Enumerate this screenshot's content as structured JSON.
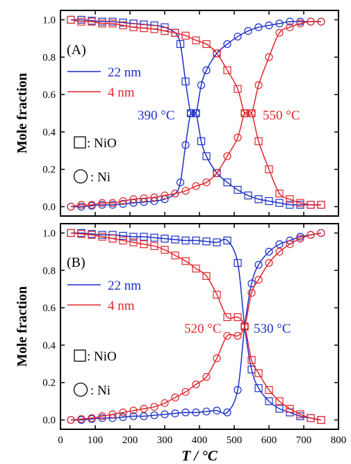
{
  "figure": {
    "x_axis_label": "T / °C",
    "x_ticks": [
      0,
      100,
      200,
      300,
      400,
      500,
      600,
      700,
      800
    ],
    "y_ticks": [
      0.0,
      0.2,
      0.4,
      0.6,
      0.8,
      1.0
    ],
    "colors": {
      "blue": "#1a2fc8",
      "red": "#e0262a",
      "axis": "#000000"
    }
  },
  "chart_data": [
    {
      "type": "line",
      "panel_label": "(A)",
      "xlabel": "",
      "ylabel": "Mole fraction",
      "xlim": [
        0,
        800
      ],
      "ylim": [
        -0.05,
        1.05
      ],
      "legend": [
        "22 nm",
        "4 nm"
      ],
      "marker_key": [
        {
          "symbol": "square",
          "label": ": NiO"
        },
        {
          "symbol": "circle",
          "label": ": Ni"
        }
      ],
      "annotations": [
        "390 °C",
        "550 °C"
      ],
      "series": [
        {
          "name": "22 nm",
          "color": "blue",
          "marker": "square",
          "x": [
            30,
            60,
            90,
            120,
            150,
            180,
            210,
            240,
            270,
            300,
            330,
            345,
            360,
            375,
            390,
            405,
            420,
            450,
            480,
            510,
            540,
            570,
            600,
            630,
            660,
            690,
            720,
            750
          ],
          "y": [
            1.0,
            1.0,
            0.995,
            0.99,
            0.99,
            0.985,
            0.98,
            0.975,
            0.97,
            0.96,
            0.93,
            0.87,
            0.67,
            0.5,
            0.5,
            0.35,
            0.27,
            0.18,
            0.13,
            0.09,
            0.06,
            0.04,
            0.03,
            0.02,
            0.01,
            0.01,
            0.01,
            0.01
          ]
        },
        {
          "name": "22 nm",
          "color": "blue",
          "marker": "circle",
          "x": [
            30,
            60,
            90,
            120,
            150,
            180,
            210,
            240,
            270,
            300,
            330,
            345,
            360,
            375,
            390,
            405,
            420,
            450,
            480,
            510,
            540,
            570,
            600,
            630,
            660,
            690,
            720,
            750
          ],
          "y": [
            0.0,
            0.0,
            0.005,
            0.01,
            0.01,
            0.015,
            0.02,
            0.025,
            0.03,
            0.04,
            0.07,
            0.13,
            0.33,
            0.5,
            0.5,
            0.65,
            0.73,
            0.82,
            0.87,
            0.91,
            0.94,
            0.96,
            0.97,
            0.98,
            0.99,
            0.99,
            0.99,
            0.99
          ]
        },
        {
          "name": "4 nm",
          "color": "red",
          "marker": "square",
          "x": [
            30,
            60,
            90,
            120,
            150,
            180,
            210,
            240,
            270,
            300,
            330,
            360,
            390,
            420,
            450,
            480,
            510,
            530,
            550,
            570,
            600,
            630,
            660,
            690,
            720,
            750
          ],
          "y": [
            1.0,
            0.99,
            0.99,
            0.98,
            0.98,
            0.97,
            0.96,
            0.955,
            0.95,
            0.94,
            0.93,
            0.915,
            0.89,
            0.87,
            0.82,
            0.73,
            0.63,
            0.5,
            0.5,
            0.35,
            0.2,
            0.07,
            0.04,
            0.02,
            0.01,
            0.01
          ]
        },
        {
          "name": "4 nm",
          "color": "red",
          "marker": "circle",
          "x": [
            30,
            60,
            90,
            120,
            150,
            180,
            210,
            240,
            270,
            300,
            330,
            360,
            390,
            420,
            450,
            480,
            510,
            530,
            550,
            570,
            600,
            630,
            660,
            690,
            720,
            750
          ],
          "y": [
            0.0,
            0.01,
            0.01,
            0.02,
            0.02,
            0.03,
            0.04,
            0.045,
            0.05,
            0.06,
            0.07,
            0.085,
            0.11,
            0.13,
            0.18,
            0.27,
            0.37,
            0.5,
            0.5,
            0.65,
            0.8,
            0.93,
            0.96,
            0.98,
            0.99,
            0.99
          ]
        }
      ]
    },
    {
      "type": "line",
      "panel_label": "(B)",
      "xlabel": "T / °C",
      "ylabel": "Mole fraction",
      "xlim": [
        0,
        800
      ],
      "ylim": [
        -0.05,
        1.05
      ],
      "legend": [
        "22 nm",
        "4 nm"
      ],
      "marker_key": [
        {
          "symbol": "square",
          "label": ": NiO"
        },
        {
          "symbol": "circle",
          "label": ": Ni"
        }
      ],
      "annotations": [
        "520 °C",
        "530 °C"
      ],
      "series": [
        {
          "name": "22 nm",
          "color": "blue",
          "marker": "square",
          "x": [
            30,
            60,
            90,
            120,
            150,
            180,
            210,
            240,
            270,
            300,
            330,
            360,
            390,
            420,
            450,
            480,
            510,
            530,
            550,
            570,
            600,
            630,
            660,
            690,
            720,
            750
          ],
          "y": [
            1.0,
            1.0,
            0.995,
            0.99,
            0.99,
            0.985,
            0.98,
            0.98,
            0.975,
            0.97,
            0.965,
            0.96,
            0.96,
            0.955,
            0.95,
            0.96,
            0.84,
            0.5,
            0.27,
            0.17,
            0.1,
            0.06,
            0.04,
            0.02,
            0.01,
            0.0
          ]
        },
        {
          "name": "22 nm",
          "color": "blue",
          "marker": "circle",
          "x": [
            30,
            60,
            90,
            120,
            150,
            180,
            210,
            240,
            270,
            300,
            330,
            360,
            390,
            420,
            450,
            480,
            510,
            530,
            550,
            570,
            600,
            630,
            660,
            690,
            720,
            750
          ],
          "y": [
            0.0,
            0.0,
            0.005,
            0.01,
            0.01,
            0.015,
            0.02,
            0.02,
            0.025,
            0.03,
            0.035,
            0.04,
            0.04,
            0.045,
            0.05,
            0.04,
            0.16,
            0.5,
            0.73,
            0.83,
            0.9,
            0.94,
            0.96,
            0.98,
            0.99,
            1.0
          ]
        },
        {
          "name": "4 nm",
          "color": "red",
          "marker": "square",
          "x": [
            30,
            60,
            90,
            120,
            150,
            180,
            210,
            240,
            270,
            300,
            330,
            360,
            390,
            420,
            450,
            480,
            510,
            530,
            550,
            570,
            600,
            630,
            660,
            690,
            720,
            750
          ],
          "y": [
            1.0,
            0.995,
            0.99,
            0.98,
            0.97,
            0.96,
            0.95,
            0.94,
            0.93,
            0.91,
            0.88,
            0.85,
            0.81,
            0.77,
            0.67,
            0.55,
            0.55,
            0.5,
            0.32,
            0.25,
            0.16,
            0.1,
            0.06,
            0.03,
            0.01,
            0.0
          ]
        },
        {
          "name": "4 nm",
          "color": "red",
          "marker": "circle",
          "x": [
            30,
            60,
            90,
            120,
            150,
            180,
            210,
            240,
            270,
            300,
            330,
            360,
            390,
            420,
            450,
            480,
            510,
            530,
            550,
            570,
            600,
            630,
            660,
            690,
            720,
            750
          ],
          "y": [
            0.0,
            0.005,
            0.01,
            0.02,
            0.03,
            0.04,
            0.05,
            0.06,
            0.07,
            0.09,
            0.12,
            0.15,
            0.19,
            0.23,
            0.33,
            0.45,
            0.45,
            0.5,
            0.68,
            0.75,
            0.84,
            0.9,
            0.94,
            0.97,
            0.99,
            1.0
          ]
        }
      ]
    }
  ]
}
